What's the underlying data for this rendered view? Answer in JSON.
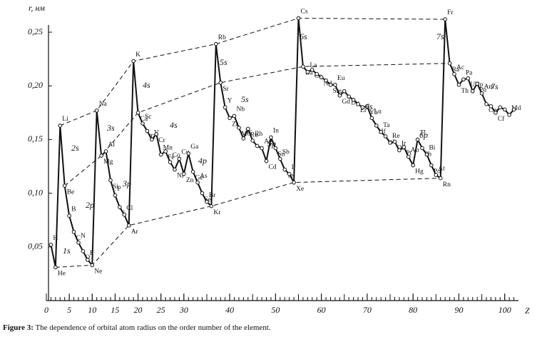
{
  "chart_data": {
    "type": "line",
    "y_label": "r, нм",
    "x_label": "Z",
    "x": [
      1,
      2,
      3,
      4,
      5,
      6,
      7,
      8,
      9,
      10,
      11,
      12,
      13,
      14,
      15,
      16,
      17,
      18,
      19,
      20,
      21,
      22,
      23,
      24,
      25,
      26,
      27,
      28,
      29,
      30,
      31,
      32,
      33,
      34,
      35,
      36,
      37,
      38,
      39,
      40,
      41,
      42,
      43,
      44,
      45,
      46,
      47,
      48,
      49,
      50,
      51,
      52,
      53,
      54,
      55,
      56,
      57,
      58,
      59,
      60,
      61,
      62,
      63,
      64,
      65,
      66,
      67,
      68,
      69,
      70,
      71,
      72,
      73,
      74,
      75,
      76,
      77,
      78,
      79,
      80,
      81,
      82,
      83,
      84,
      85,
      86,
      87,
      88,
      89,
      90,
      91,
      92,
      93,
      94,
      95,
      96,
      97,
      98,
      99,
      100,
      101,
      102
    ],
    "values": [
      0.052,
      0.031,
      0.163,
      0.107,
      0.079,
      0.064,
      0.054,
      0.046,
      0.038,
      0.033,
      0.177,
      0.135,
      0.139,
      0.112,
      0.098,
      0.087,
      0.08,
      0.07,
      0.223,
      0.175,
      0.165,
      0.158,
      0.15,
      0.155,
      0.136,
      0.139,
      0.129,
      0.122,
      0.132,
      0.118,
      0.137,
      0.12,
      0.11,
      0.1,
      0.092,
      0.088,
      0.239,
      0.203,
      0.18,
      0.17,
      0.172,
      0.161,
      0.151,
      0.16,
      0.149,
      0.144,
      0.142,
      0.13,
      0.152,
      0.142,
      0.132,
      0.122,
      0.118,
      0.11,
      0.263,
      0.218,
      0.213,
      0.215,
      0.211,
      0.208,
      0.205,
      0.201,
      0.201,
      0.191,
      0.195,
      0.19,
      0.187,
      0.183,
      0.18,
      0.181,
      0.17,
      0.163,
      0.157,
      0.153,
      0.147,
      0.148,
      0.14,
      0.143,
      0.134,
      0.126,
      0.15,
      0.142,
      0.136,
      0.126,
      0.117,
      0.114,
      0.262,
      0.221,
      0.211,
      0.201,
      0.206,
      0.207,
      0.195,
      0.202,
      0.193,
      0.183,
      0.181,
      0.175,
      0.18,
      0.178,
      0.173,
      0.178
    ],
    "labels": [
      "H",
      "He",
      "Li",
      "Be",
      "B",
      "C",
      "N",
      "O",
      "F",
      "Ne",
      "Na",
      "Mg",
      "Al",
      "Si",
      "P",
      "S",
      "Cl",
      "Ar",
      "K",
      "Ca",
      "Sc",
      "Ti",
      "V",
      "Cr",
      "Mn",
      "Fe",
      "Co",
      "Ni",
      "Cu",
      "Zn",
      "Ga",
      "Ge",
      "As",
      "Se",
      "Br",
      "Kr",
      "Rb",
      "Sr",
      "Y",
      "Zr",
      "Nb",
      "Mo",
      "Tc",
      "Ru",
      "Rh",
      null,
      "Ag",
      "Cd",
      "In",
      "Sn",
      "Sb",
      "Te",
      "I",
      "Xe",
      "Cs",
      "Ba",
      "La",
      "Ce",
      null,
      "Nd",
      null,
      "Sm",
      "Eu",
      "Gd",
      null,
      "Dy",
      null,
      "Er",
      null,
      "Yb",
      "Lu",
      "Hf",
      "Ta",
      "W",
      "Re",
      "Os",
      "Ir",
      "Pt",
      "Au",
      "Hg",
      "Tl",
      "Pb",
      "Bi",
      "Po",
      "At",
      "Rn",
      "Fr",
      "Ra",
      "Ac",
      "Th",
      "Pa",
      "U",
      "Np",
      "Pu",
      "Am",
      "Cm",
      null,
      "Cf",
      null,
      null,
      "Md",
      null
    ],
    "groups": [
      [
        3,
        11,
        19,
        37,
        55,
        87
      ],
      [
        2,
        10,
        18,
        36,
        54,
        86
      ],
      [
        4,
        12,
        20,
        38,
        56,
        88
      ]
    ],
    "shells": [
      "1s",
      "2s",
      "2p",
      "3s",
      "3p",
      "4s",
      "4s",
      "4p",
      "5s",
      "5s",
      "5p",
      "6s",
      "6s",
      "6p",
      "7s",
      "7s"
    ],
    "xlim": [
      0,
      103
    ],
    "ylim": [
      0,
      0.27
    ],
    "xticks": [
      0,
      5,
      10,
      15,
      20,
      25,
      30,
      40,
      50,
      60,
      70,
      80,
      90,
      100
    ],
    "xminor": [
      0,
      1,
      2,
      3,
      4,
      5,
      6,
      7,
      8,
      9,
      10,
      11,
      12,
      13,
      14,
      15,
      16,
      17,
      18,
      19,
      20,
      21,
      22,
      23,
      24,
      25,
      26,
      27,
      28,
      29,
      30,
      31,
      32,
      33,
      34,
      35,
      36,
      37,
      38,
      39,
      40,
      41,
      42,
      43,
      44,
      45,
      46,
      47,
      48,
      49,
      50,
      51,
      52,
      53,
      54,
      55,
      56,
      57,
      58,
      59,
      60,
      61,
      62,
      63,
      64,
      65,
      66,
      67,
      68,
      69,
      70,
      71,
      72,
      73,
      74,
      75,
      76,
      77,
      78,
      79,
      80,
      81,
      82,
      83,
      84,
      85,
      86,
      87,
      88,
      89,
      90,
      91,
      92,
      93,
      94,
      95,
      96,
      97,
      98,
      99,
      100,
      101,
      102
    ],
    "yticks": [
      {
        "value": 0.05,
        "label": "0,05"
      },
      {
        "value": 0.1,
        "label": "0,10"
      },
      {
        "value": 0.15,
        "label": "0,15"
      },
      {
        "value": 0.2,
        "label": "0,20"
      },
      {
        "value": 0.25,
        "label": "0,25"
      }
    ],
    "color": "#111111"
  },
  "caption": {
    "label": "Figure 3:",
    "text": "The dependence of orbital atom radius on the order number of the element."
  }
}
